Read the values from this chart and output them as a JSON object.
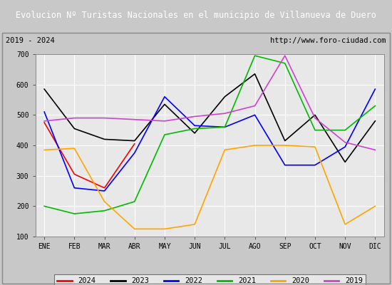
{
  "title": "Evolucion Nº Turistas Nacionales en el municipio de Villanueva de Duero",
  "subtitle_left": "2019 - 2024",
  "subtitle_right": "http://www.foro-ciudad.com",
  "title_bg_color": "#4472c4",
  "title_text_color": "#ffffff",
  "months": [
    "ENE",
    "FEB",
    "MAR",
    "ABR",
    "MAY",
    "JUN",
    "JUL",
    "AGO",
    "SEP",
    "OCT",
    "NOV",
    "DIC"
  ],
  "ylim": [
    100,
    700
  ],
  "yticks": [
    100,
    200,
    300,
    400,
    500,
    600,
    700
  ],
  "series": {
    "2024": {
      "color": "#ff0000",
      "values": [
        475,
        305,
        260,
        405,
        null,
        null,
        null,
        null,
        null,
        null,
        null,
        null
      ]
    },
    "2023": {
      "color": "#000000",
      "values": [
        585,
        455,
        420,
        415,
        535,
        440,
        560,
        635,
        415,
        500,
        345,
        480
      ]
    },
    "2022": {
      "color": "#0000ff",
      "values": [
        510,
        260,
        250,
        375,
        560,
        465,
        460,
        500,
        335,
        335,
        395,
        585
      ]
    },
    "2021": {
      "color": "#00bb00",
      "values": [
        200,
        175,
        185,
        215,
        435,
        455,
        460,
        695,
        670,
        450,
        450,
        530
      ]
    },
    "2020": {
      "color": "#ffa500",
      "values": [
        385,
        390,
        215,
        125,
        125,
        140,
        385,
        400,
        400,
        395,
        140,
        200
      ]
    },
    "2019": {
      "color": "#cc44cc",
      "values": [
        480,
        490,
        490,
        485,
        480,
        495,
        505,
        530,
        695,
        490,
        410,
        385
      ]
    }
  },
  "legend_order": [
    "2024",
    "2023",
    "2022",
    "2021",
    "2020",
    "2019"
  ],
  "plot_bg": "#e8e8e8",
  "fig_bg": "#c8c8c8",
  "inner_bg": "#f0f0f0",
  "grid_color": "#ffffff"
}
